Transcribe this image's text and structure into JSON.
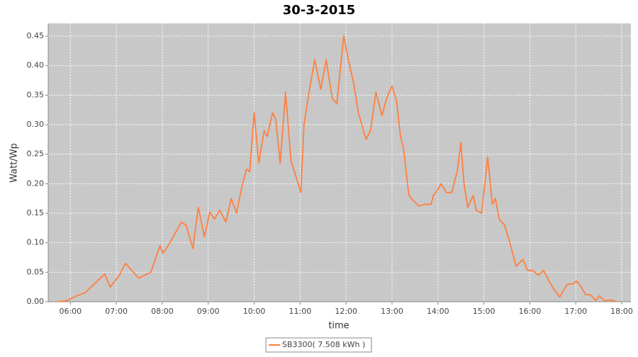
{
  "chart_data": {
    "type": "line",
    "title": "30-3-2015",
    "x_label": "time",
    "y_label": "Watt/Wp",
    "x": [
      "05:44",
      "05:56",
      "06:08",
      "06:19",
      "06:45",
      "06:52",
      "07:04",
      "07:12",
      "07:29",
      "07:45",
      "07:57",
      "08:01",
      "08:10",
      "08:25",
      "08:31",
      "08:40",
      "08:47",
      "08:55",
      "09:02",
      "09:08",
      "09:15",
      "09:23",
      "09:30",
      "09:37",
      "09:43",
      "09:50",
      "09:54",
      "10:00",
      "10:06",
      "10:13",
      "10:17",
      "10:24",
      "10:28",
      "10:34",
      "10:41",
      "10:48",
      "10:55",
      "11:01",
      "11:05",
      "11:11",
      "11:19",
      "11:27",
      "11:34",
      "11:42",
      "11:48",
      "11:53",
      "11:57",
      "12:03",
      "12:10",
      "12:16",
      "12:26",
      "12:32",
      "12:39",
      "12:47",
      "12:53",
      "13:00",
      "13:06",
      "13:11",
      "13:15",
      "13:22",
      "13:29",
      "13:35",
      "13:43",
      "13:51",
      "13:54",
      "14:00",
      "14:04",
      "14:11",
      "14:18",
      "14:25",
      "14:30",
      "14:34",
      "14:39",
      "14:46",
      "14:50",
      "14:57",
      "15:05",
      "15:11",
      "15:15",
      "15:20",
      "15:27",
      "15:34",
      "15:42",
      "15:51",
      "15:57",
      "16:04",
      "16:11",
      "16:18",
      "16:25",
      "16:32",
      "16:39",
      "16:49",
      "16:56",
      "17:01",
      "17:07",
      "17:13",
      "17:19",
      "17:26",
      "17:31",
      "17:37",
      "17:48",
      "17:53"
    ],
    "series": [
      {
        "name": "SB3300( 7.508 kWh )",
        "color": "#ff7f3f",
        "values": [
          0,
          0.002,
          0.01,
          0.015,
          0.047,
          0.025,
          0.045,
          0.065,
          0.04,
          0.05,
          0.095,
          0.082,
          0.1,
          0.135,
          0.13,
          0.09,
          0.16,
          0.11,
          0.152,
          0.14,
          0.155,
          0.135,
          0.175,
          0.15,
          0.19,
          0.225,
          0.22,
          0.32,
          0.235,
          0.29,
          0.28,
          0.32,
          0.31,
          0.235,
          0.355,
          0.24,
          0.21,
          0.185,
          0.3,
          0.35,
          0.41,
          0.36,
          0.41,
          0.345,
          0.335,
          0.4,
          0.45,
          0.41,
          0.37,
          0.32,
          0.275,
          0.29,
          0.355,
          0.315,
          0.345,
          0.365,
          0.34,
          0.28,
          0.26,
          0.18,
          0.17,
          0.162,
          0.165,
          0.165,
          0.18,
          0.19,
          0.2,
          0.185,
          0.185,
          0.22,
          0.27,
          0.2,
          0.16,
          0.18,
          0.155,
          0.15,
          0.245,
          0.165,
          0.175,
          0.14,
          0.13,
          0.1,
          0.06,
          0.072,
          0.053,
          0.053,
          0.045,
          0.053,
          0.035,
          0.02,
          0.008,
          0.03,
          0.03,
          0.035,
          0.025,
          0.012,
          0.012,
          0.002,
          0.01,
          0.002,
          0.003,
          0
        ]
      }
    ],
    "xlim": [
      "05:31",
      "18:12"
    ],
    "xticks": [
      "06:00",
      "07:00",
      "08:00",
      "09:00",
      "10:00",
      "11:00",
      "12:00",
      "13:00",
      "14:00",
      "15:00",
      "16:00",
      "17:00",
      "18:00"
    ],
    "ylim": [
      0,
      0.4716
    ],
    "yticks": [
      {
        "value": 0,
        "label": "0.00"
      },
      {
        "value": 0.05,
        "label": "0.05"
      },
      {
        "value": 0.1,
        "label": "0.10"
      },
      {
        "value": 0.15,
        "label": "0.15"
      },
      {
        "value": 0.2,
        "label": "0.20"
      },
      {
        "value": 0.25,
        "label": "0.25"
      },
      {
        "value": 0.3,
        "label": "0.30"
      },
      {
        "value": 0.35,
        "label": "0.35"
      },
      {
        "value": 0.4,
        "label": "0.40"
      },
      {
        "value": 0.45,
        "label": "0.45"
      }
    ],
    "grid": true,
    "legend": "bottom"
  }
}
